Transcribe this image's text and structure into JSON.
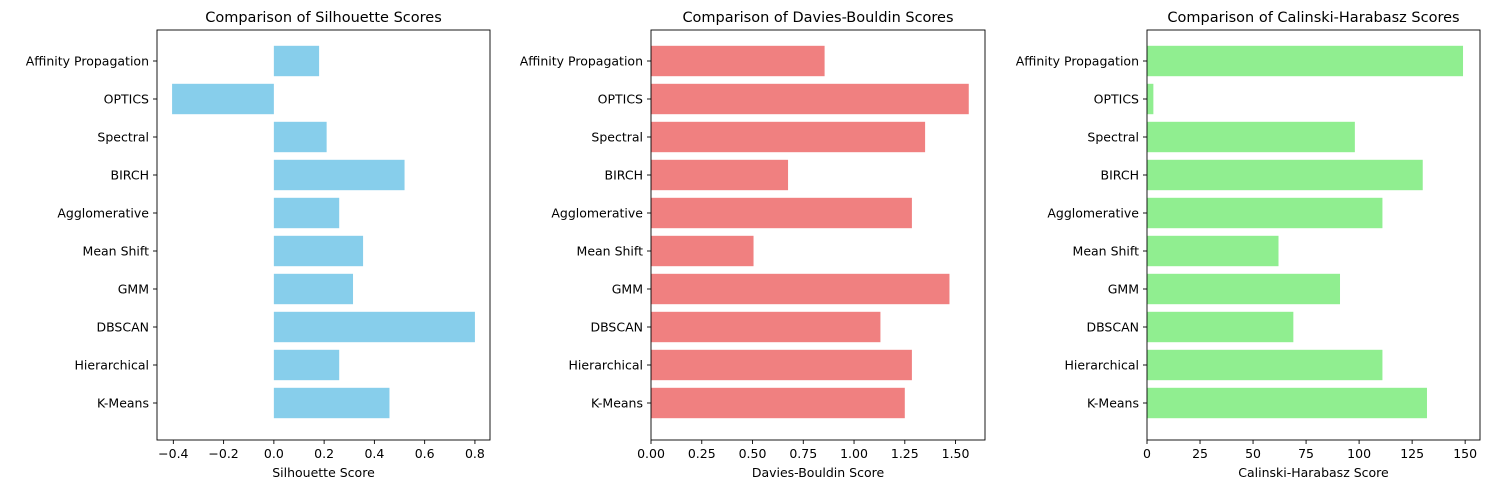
{
  "chart_data": [
    {
      "type": "bar",
      "orientation": "horizontal",
      "title": "Comparison of Silhouette Scores",
      "xlabel": "Silhouette Score",
      "ylabel": "",
      "color": "#87ceeb",
      "categories": [
        "K-Means",
        "Hierarchical",
        "DBSCAN",
        "GMM",
        "Mean Shift",
        "Agglomerative",
        "BIRCH",
        "Spectral",
        "OPTICS",
        "Affinity Propagation"
      ],
      "values": [
        0.46,
        0.26,
        0.8,
        0.315,
        0.355,
        0.26,
        0.52,
        0.21,
        -0.405,
        0.18
      ],
      "xlim": [
        -0.465,
        0.86
      ],
      "xticks": [
        -0.4,
        -0.2,
        0.0,
        0.2,
        0.4,
        0.6,
        0.8
      ],
      "xtick_labels": [
        "−0.4",
        "−0.2",
        "0.0",
        "0.2",
        "0.4",
        "0.6",
        "0.8"
      ],
      "grid": false
    },
    {
      "type": "bar",
      "orientation": "horizontal",
      "title": "Comparison of Davies-Bouldin Scores",
      "xlabel": "Davies-Bouldin Score",
      "ylabel": "",
      "color": "#f08080",
      "categories": [
        "K-Means",
        "Hierarchical",
        "DBSCAN",
        "GMM",
        "Mean Shift",
        "Agglomerative",
        "BIRCH",
        "Spectral",
        "OPTICS",
        "Affinity Propagation"
      ],
      "values": [
        1.25,
        1.285,
        1.13,
        1.47,
        0.505,
        1.285,
        0.675,
        1.35,
        1.565,
        0.855
      ],
      "xlim": [
        0.0,
        1.645
      ],
      "xticks": [
        0.0,
        0.25,
        0.5,
        0.75,
        1.0,
        1.25,
        1.5
      ],
      "xtick_labels": [
        "0.00",
        "0.25",
        "0.50",
        "0.75",
        "1.00",
        "1.25",
        "1.50"
      ],
      "grid": false
    },
    {
      "type": "bar",
      "orientation": "horizontal",
      "title": "Comparison of Calinski-Harabasz Scores",
      "xlabel": "Calinski-Harabasz Score",
      "ylabel": "",
      "color": "#90ee90",
      "categories": [
        "K-Means",
        "Hierarchical",
        "DBSCAN",
        "GMM",
        "Mean Shift",
        "Agglomerative",
        "BIRCH",
        "Spectral",
        "OPTICS",
        "Affinity Propagation"
      ],
      "values": [
        132,
        111,
        69,
        91,
        62,
        111,
        130,
        98,
        3,
        149
      ],
      "xlim": [
        0,
        157
      ],
      "xticks": [
        0,
        25,
        50,
        75,
        100,
        125,
        150
      ],
      "xtick_labels": [
        "0",
        "25",
        "50",
        "75",
        "100",
        "125",
        "150"
      ],
      "grid": false
    }
  ]
}
